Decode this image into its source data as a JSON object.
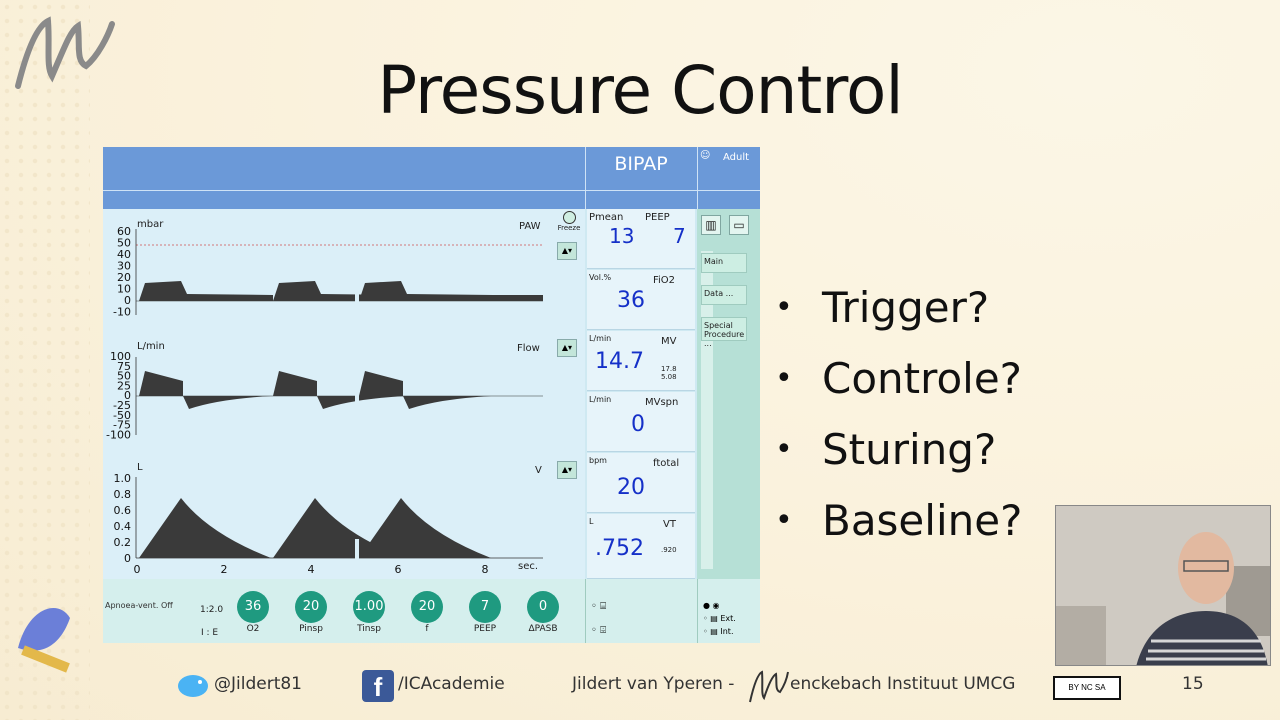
{
  "slide": {
    "title": "Pressure Control",
    "page_number": "15",
    "bullets": [
      "Trigger?",
      "Controle?",
      "Sturing?",
      "Baseline?"
    ]
  },
  "footer": {
    "twitter": "@Jildert81",
    "facebook": "/ICAcademie",
    "author": "Jildert van Yperen -",
    "institute": "enckebach Instituut UMCG",
    "license_badge": "BY NC SA"
  },
  "ventilator": {
    "mode": "BIPAP",
    "patient": "Adult",
    "freeze_label": "Freeze",
    "menu": {
      "main": "Main",
      "data": "Data ...",
      "special": "Special Procedure ..."
    },
    "paw": {
      "unit": "mbar",
      "label": "PAW",
      "ticks": [
        "60",
        "50",
        "40",
        "30",
        "20",
        "10",
        "0",
        "-10"
      ]
    },
    "flow": {
      "unit": "L/min",
      "label": "Flow",
      "ticks": [
        "100",
        "75",
        "50",
        "25",
        "0",
        "-25",
        "-50",
        "-75",
        "-100"
      ]
    },
    "volume": {
      "unit": "L",
      "label": "V",
      "ticks": [
        "1.0",
        "0.8",
        "0.6",
        "0.4",
        "0.2",
        "0"
      ]
    },
    "time_axis": {
      "ticks": [
        "0",
        "2",
        "4",
        "6",
        "8"
      ],
      "unit": "sec."
    },
    "measurements": {
      "pmean_label": "Pmean",
      "pmean": "13",
      "peep_label": "PEEP",
      "peep": "7",
      "fio2_unit": "Vol.%",
      "fio2_label": "FiO2",
      "fio2": "36",
      "mv_unit": "L/min",
      "mv_label": "MV",
      "mv": "14.7",
      "mv_hi": "17.8",
      "mv_lo": "5.08",
      "mvspn_unit": "L/min",
      "mvspn_label": "MVspn",
      "mvspn": "0",
      "f_unit": "bpm",
      "f_label": "ftotal",
      "f": "20",
      "vt_unit": "L",
      "vt_label": "VT",
      "vt": ".752",
      "vt_hi": ".920"
    },
    "settings": {
      "apnoea": "Apnoea-vent. Off",
      "ie_value": "1:2.0",
      "ie_label": "I : E",
      "knobs": [
        {
          "value": "36",
          "label": "O2"
        },
        {
          "value": "20",
          "label": "Pinsp"
        },
        {
          "value": "1.00",
          "label": "Tinsp"
        },
        {
          "value": "20",
          "label": "f"
        },
        {
          "value": "7",
          "label": "PEEP"
        },
        {
          "value": "0",
          "label": "ΔPASB"
        }
      ]
    },
    "indicators": {
      "ext": "Ext.",
      "int": "Int."
    }
  }
}
